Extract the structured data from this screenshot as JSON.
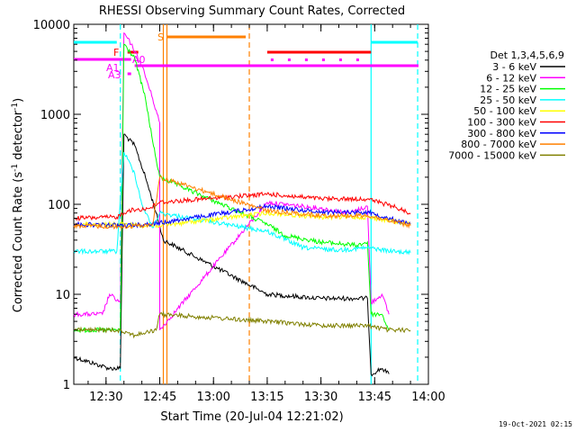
{
  "chart_data": {
    "type": "line",
    "title": "RHESSI Observing Summary Count Rates, Corrected",
    "xlabel": "Start Time (20-Jul-04 12:21:02)",
    "ylabel_main": "Corrected Count Rate (s",
    "ylabel_exp1": "-1",
    "ylabel_mid": " detector",
    "ylabel_exp2": "-1",
    "ylabel_end": ")",
    "yscale": "log",
    "ylim": [
      1,
      10000
    ],
    "xlim": [
      "12:21",
      "14:00"
    ],
    "x_ticks": [
      "12:30",
      "12:45",
      "13:00",
      "13:15",
      "13:30",
      "13:45",
      "14:00"
    ],
    "y_ticks": [
      "1",
      "10",
      "100",
      "1000",
      "10000"
    ],
    "legend_title": "Det 1,3,4,5,6,9",
    "legend_position": "right",
    "timestamp": "19-Oct-2021 02:15",
    "series": [
      {
        "name": "3 - 6 keV",
        "color": "#000000",
        "points": [
          [
            "12:21",
            2
          ],
          [
            "12:31",
            1.5
          ],
          [
            "12:34",
            1.5
          ],
          [
            "12:35",
            600
          ],
          [
            "12:38",
            450
          ],
          [
            "12:41",
            200
          ],
          [
            "12:44",
            80
          ],
          [
            "12:46",
            40
          ],
          [
            "13:15",
            10
          ],
          [
            "13:30",
            9
          ],
          [
            "13:43",
            9
          ],
          [
            "13:44",
            1.3
          ],
          [
            "13:47",
            1.5
          ],
          [
            "13:49",
            1.3
          ]
        ]
      },
      {
        "name": "6 - 12 keV",
        "color": "#ff00ff",
        "points": [
          [
            "12:21",
            6
          ],
          [
            "12:29",
            6
          ],
          [
            "12:31",
            10
          ],
          [
            "12:34",
            8
          ],
          [
            "12:35",
            8000
          ],
          [
            "12:37",
            6000
          ],
          [
            "12:40",
            3500
          ],
          [
            "12:43",
            1500
          ],
          [
            "12:45",
            800
          ],
          [
            "12:45",
            4
          ],
          [
            "13:15",
            105
          ],
          [
            "13:30",
            90
          ],
          [
            "13:38",
            80
          ],
          [
            "13:43",
            95
          ],
          [
            "13:44",
            8
          ],
          [
            "13:47",
            10
          ],
          [
            "13:49",
            6
          ]
        ]
      },
      {
        "name": "12 - 25 keV",
        "color": "#00ff00",
        "points": [
          [
            "12:21",
            4
          ],
          [
            "12:34",
            4
          ],
          [
            "12:35",
            6000
          ],
          [
            "12:38",
            4200
          ],
          [
            "12:41",
            1500
          ],
          [
            "12:43",
            500
          ],
          [
            "12:45",
            200
          ],
          [
            "13:15",
            60
          ],
          [
            "13:20",
            45
          ],
          [
            "13:30",
            38
          ],
          [
            "13:40",
            35
          ],
          [
            "13:43",
            38
          ],
          [
            "13:44",
            6
          ],
          [
            "13:47",
            6
          ],
          [
            "13:49",
            4
          ]
        ]
      },
      {
        "name": "25 - 50 keV",
        "color": "#00ffff",
        "points": [
          [
            "12:21",
            30
          ],
          [
            "12:33",
            30
          ],
          [
            "12:35",
            380
          ],
          [
            "12:38",
            220
          ],
          [
            "12:40",
            100
          ],
          [
            "12:43",
            55
          ],
          [
            "12:45",
            80
          ],
          [
            "13:15",
            50
          ],
          [
            "13:25",
            33
          ],
          [
            "13:35",
            31
          ],
          [
            "13:43",
            33
          ],
          [
            "13:50",
            30
          ],
          [
            "13:55",
            29
          ]
        ]
      },
      {
        "name": "50 - 100 keV",
        "color": "#ffff00",
        "points": [
          [
            "12:21",
            60
          ],
          [
            "12:35",
            60
          ],
          [
            "12:40",
            58
          ],
          [
            "12:45",
            58
          ],
          [
            "13:15",
            80
          ],
          [
            "13:30",
            72
          ],
          [
            "13:43",
            72
          ],
          [
            "13:55",
            60
          ]
        ]
      },
      {
        "name": "100 - 300 keV",
        "color": "#ff0000",
        "points": [
          [
            "12:21",
            70
          ],
          [
            "12:33",
            72
          ],
          [
            "12:36",
            85
          ],
          [
            "12:42",
            90
          ],
          [
            "12:45",
            105
          ],
          [
            "13:15",
            130
          ],
          [
            "13:30",
            115
          ],
          [
            "13:43",
            115
          ],
          [
            "13:50",
            95
          ],
          [
            "13:55",
            80
          ]
        ]
      },
      {
        "name": "300 - 800 keV",
        "color": "#0000ff",
        "points": [
          [
            "12:21",
            60
          ],
          [
            "12:35",
            58
          ],
          [
            "12:42",
            60
          ],
          [
            "12:45",
            62
          ],
          [
            "13:15",
            95
          ],
          [
            "13:30",
            82
          ],
          [
            "13:43",
            82
          ],
          [
            "13:55",
            60
          ]
        ]
      },
      {
        "name": "800 - 7000 keV",
        "color": "#ff8000",
        "points": [
          [
            "12:21",
            58
          ],
          [
            "12:35",
            56
          ],
          [
            "12:43",
            60
          ],
          [
            "12:45",
            200
          ],
          [
            "13:15",
            85
          ],
          [
            "13:30",
            75
          ],
          [
            "13:43",
            75
          ],
          [
            "13:55",
            58
          ]
        ]
      },
      {
        "name": "7000 - 15000 keV",
        "color": "#808000",
        "points": [
          [
            "12:21",
            4
          ],
          [
            "12:34",
            4
          ],
          [
            "12:38",
            3.5
          ],
          [
            "12:44",
            4
          ],
          [
            "12:45",
            6
          ],
          [
            "13:15",
            5
          ],
          [
            "13:30",
            4.5
          ],
          [
            "13:43",
            4.5
          ],
          [
            "13:49",
            4
          ],
          [
            "13:55",
            4
          ]
        ]
      }
    ],
    "annotations": {
      "letters": [
        "F",
        "A0",
        "A1",
        "A3",
        "S"
      ],
      "vertical_lines": [
        {
          "time": "12:34",
          "color": "#00ffff",
          "style": "dashed"
        },
        {
          "time": "12:46",
          "color": "#ff8000",
          "style": "solid"
        },
        {
          "time": "12:47",
          "color": "#ff8000",
          "style": "solid"
        },
        {
          "time": "13:10",
          "color": "#ff8000",
          "style": "dashed"
        },
        {
          "time": "13:44",
          "color": "#00ffff",
          "style": "solid"
        },
        {
          "time": "13:57",
          "color": "#00ffff",
          "style": "dashed"
        }
      ]
    }
  }
}
